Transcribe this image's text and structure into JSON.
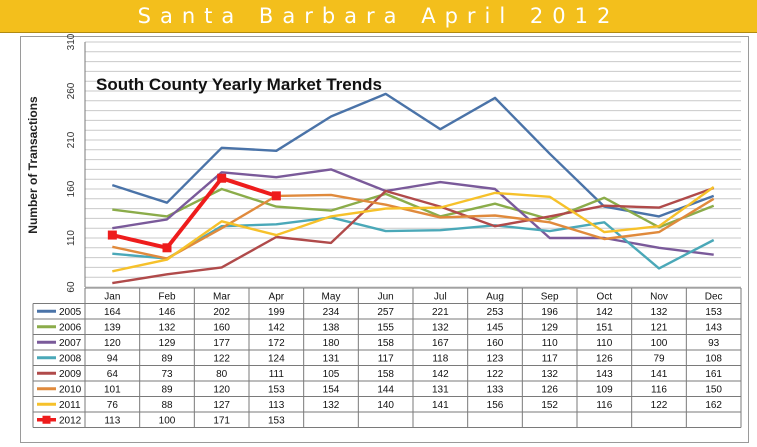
{
  "banner": {
    "title": "Santa Barbara April  2012",
    "background": "#f3bf1c"
  },
  "chart_data": {
    "type": "line",
    "title": "South County Yearly Market Trends",
    "xlabel": "",
    "ylabel": "Number of Transactions",
    "ylim": [
      60,
      310
    ],
    "yticks": [
      60,
      110,
      160,
      210,
      260,
      310
    ],
    "grid": true,
    "legend": "data-table-below",
    "categories": [
      "Jan",
      "Feb",
      "Mar",
      "Apr",
      "May",
      "Jun",
      "Jul",
      "Aug",
      "Sep",
      "Oct",
      "Nov",
      "Dec"
    ],
    "series": [
      {
        "name": "2005",
        "color": "#4a73a8",
        "values": [
          164,
          146,
          202,
          199,
          234,
          257,
          221,
          253,
          196,
          142,
          132,
          153
        ]
      },
      {
        "name": "2006",
        "color": "#8bac4a",
        "values": [
          139,
          132,
          160,
          142,
          138,
          155,
          132,
          145,
          129,
          151,
          121,
          143
        ]
      },
      {
        "name": "2007",
        "color": "#7a5a9a",
        "values": [
          120,
          129,
          177,
          172,
          180,
          158,
          167,
          160,
          110,
          110,
          100,
          93
        ]
      },
      {
        "name": "2008",
        "color": "#4aa8b8",
        "values": [
          94,
          89,
          122,
          124,
          131,
          117,
          118,
          123,
          117,
          126,
          79,
          108
        ]
      },
      {
        "name": "2009",
        "color": "#b04a4a",
        "values": [
          64,
          73,
          80,
          111,
          105,
          158,
          142,
          122,
          132,
          143,
          141,
          161
        ]
      },
      {
        "name": "2010",
        "color": "#e08a3c",
        "values": [
          101,
          89,
          120,
          153,
          154,
          144,
          131,
          133,
          126,
          109,
          116,
          150
        ]
      },
      {
        "name": "2011",
        "color": "#f6c12a",
        "values": [
          76,
          88,
          127,
          113,
          132,
          140,
          141,
          156,
          152,
          116,
          122,
          162
        ]
      },
      {
        "name": "2012",
        "color": "#ee1c1c",
        "values": [
          113,
          100,
          171,
          153,
          null,
          null,
          null,
          null,
          null,
          null,
          null,
          null
        ]
      }
    ]
  }
}
